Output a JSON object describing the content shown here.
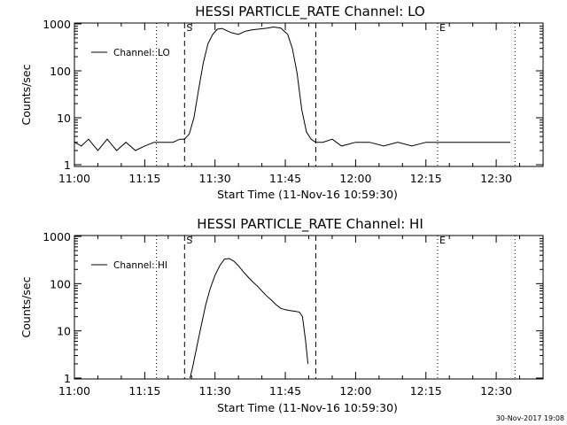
{
  "footer": {
    "timestamp": "30-Nov-2017 19:08"
  },
  "chart_data": [
    {
      "type": "line",
      "title": "HESSI PARTICLE_RATE Channel: LO",
      "xlabel": "Start Time (11-Nov-16 10:59:30)",
      "ylabel": "Counts/sec",
      "yscale": "log",
      "xlim": [
        "11:00",
        "12:40"
      ],
      "ylim": [
        1,
        1000
      ],
      "xticks": [
        "11:00",
        "11:15",
        "11:30",
        "11:45",
        "12:00",
        "12:15",
        "12:30"
      ],
      "yticks": [
        "1",
        "10",
        "100",
        "1000"
      ],
      "grid": false,
      "legend": "top-left",
      "markers": [
        {
          "label": "S",
          "time": "11:23:30",
          "style": "dashed"
        },
        {
          "label": "",
          "time": "11:51:30",
          "style": "dashed"
        },
        {
          "label": "",
          "time": "11:17:30",
          "style": "dotted"
        },
        {
          "label": "E",
          "time": "12:17:30",
          "style": "dotted"
        },
        {
          "label": "",
          "time": "12:34:00",
          "style": "dotted"
        }
      ],
      "series": [
        {
          "name": "Channel: LO",
          "x": [
            "11:00:00",
            "11:01:30",
            "11:03:00",
            "11:05:00",
            "11:07:00",
            "11:09:00",
            "11:11:00",
            "11:13:00",
            "11:15:00",
            "11:17:00",
            "11:19:00",
            "11:21:00",
            "11:22:30",
            "11:23:30",
            "11:24:30",
            "11:25:30",
            "11:26:30",
            "11:27:30",
            "11:28:30",
            "11:29:30",
            "11:30:30",
            "11:31:30",
            "11:32:30",
            "11:33:30",
            "11:35:00",
            "11:36:30",
            "11:38:00",
            "11:39:30",
            "11:41:00",
            "11:42:30",
            "11:44:00",
            "11:45:30",
            "11:46:30",
            "11:47:30",
            "11:48:30",
            "11:49:30",
            "11:50:30",
            "11:51:30",
            "11:53:00",
            "11:55:00",
            "11:57:00",
            "12:00:00",
            "12:03:00",
            "12:06:00",
            "12:09:00",
            "12:12:00",
            "12:15:00",
            "12:18:00",
            "12:21:00",
            "12:24:00",
            "12:27:00",
            "12:30:00",
            "12:33:00"
          ],
          "values": [
            3,
            2.5,
            3.5,
            2,
            3.5,
            2,
            3,
            2,
            2.5,
            3,
            3,
            3,
            3.5,
            3.5,
            4.5,
            10,
            40,
            150,
            380,
            600,
            770,
            800,
            720,
            650,
            600,
            700,
            750,
            780,
            810,
            860,
            820,
            600,
            300,
            90,
            15,
            5,
            3.5,
            3,
            3,
            3.5,
            2.5,
            3,
            3,
            2.5,
            3,
            2.5,
            3,
            3,
            3,
            3,
            3,
            3,
            3
          ]
        }
      ]
    },
    {
      "type": "line",
      "title": "HESSI PARTICLE_RATE Channel: HI",
      "xlabel": "Start Time (11-Nov-16 10:59:30)",
      "ylabel": "Counts/sec",
      "yscale": "log",
      "xlim": [
        "11:00",
        "12:40"
      ],
      "ylim": [
        1,
        1000
      ],
      "xticks": [
        "11:00",
        "11:15",
        "11:30",
        "11:45",
        "12:00",
        "12:15",
        "12:30"
      ],
      "yticks": [
        "1",
        "10",
        "100",
        "1000"
      ],
      "grid": false,
      "legend": "top-left",
      "markers": [
        {
          "label": "S",
          "time": "11:23:30",
          "style": "dashed"
        },
        {
          "label": "",
          "time": "11:51:30",
          "style": "dashed"
        },
        {
          "label": "",
          "time": "11:17:30",
          "style": "dotted"
        },
        {
          "label": "E",
          "time": "12:17:30",
          "style": "dotted"
        },
        {
          "label": "",
          "time": "12:34:00",
          "style": "dotted"
        }
      ],
      "series": [
        {
          "name": "Channel: HI",
          "x": [
            "11:24:40",
            "11:25:10",
            "11:26:00",
            "11:27:00",
            "11:28:00",
            "11:29:00",
            "11:30:00",
            "11:31:00",
            "11:32:00",
            "11:33:00",
            "11:34:00",
            "11:35:00",
            "11:36:00",
            "11:37:00",
            "11:38:00",
            "11:39:00",
            "11:40:00",
            "11:41:00",
            "11:42:00",
            "11:43:00",
            "11:44:00",
            "11:45:00",
            "11:46:00",
            "11:47:00",
            "11:48:00",
            "11:48:40",
            "11:49:20",
            "11:49:50"
          ],
          "values": [
            1,
            1.6,
            4,
            12,
            35,
            80,
            150,
            240,
            330,
            340,
            300,
            240,
            180,
            140,
            110,
            90,
            70,
            55,
            45,
            36,
            30,
            28,
            27,
            26,
            25,
            20,
            6,
            2
          ]
        }
      ]
    }
  ]
}
